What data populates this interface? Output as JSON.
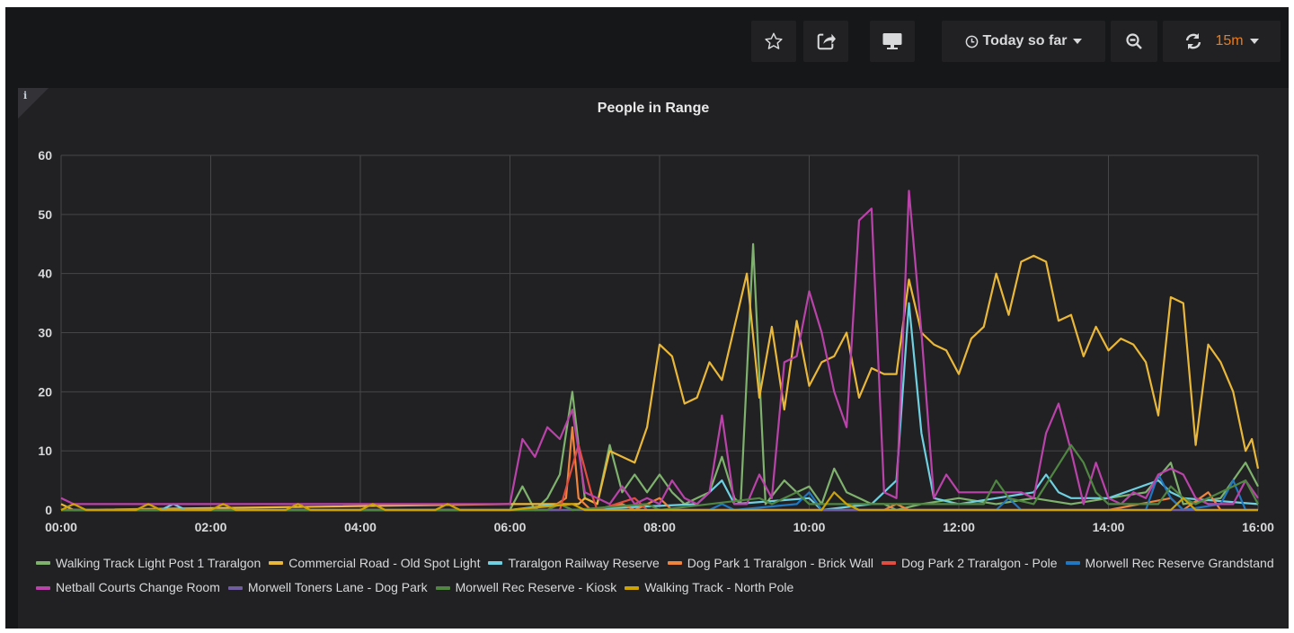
{
  "toolbar": {
    "star_icon": "star-icon",
    "share_icon": "share-icon",
    "tv_icon": "monitor-icon",
    "time_range_label": "Today so far",
    "zoom_icon": "zoom-out-icon",
    "refresh_icon": "refresh-icon",
    "refresh_interval": "15m",
    "refresh_color": "#eb7b18"
  },
  "panel": {
    "info_mark": "i"
  },
  "chart_data": {
    "type": "line",
    "title": "People in Range",
    "xlabel": "",
    "ylabel": "",
    "x_ticks": [
      "00:00",
      "02:00",
      "04:00",
      "06:00",
      "08:00",
      "10:00",
      "12:00",
      "14:00",
      "16:00"
    ],
    "xlim": [
      "00:00",
      "16:00"
    ],
    "y_ticks": [
      0,
      10,
      20,
      30,
      40,
      50,
      60
    ],
    "ylim": [
      0,
      60
    ],
    "grid": true,
    "legend_position": "bottom",
    "series": [
      {
        "name": "Walking Track Light Post 1 Traralgon",
        "color": "#7eb26d",
        "points": [
          [
            "00:00",
            0
          ],
          [
            "06:00",
            0
          ],
          [
            "06:10",
            4
          ],
          [
            "06:20",
            0
          ],
          [
            "06:30",
            2
          ],
          [
            "06:40",
            6
          ],
          [
            "06:50",
            20
          ],
          [
            "07:00",
            2
          ],
          [
            "07:10",
            1
          ],
          [
            "07:20",
            11
          ],
          [
            "07:30",
            3
          ],
          [
            "07:40",
            6
          ],
          [
            "07:50",
            3
          ],
          [
            "08:00",
            6
          ],
          [
            "08:10",
            3
          ],
          [
            "08:20",
            1
          ],
          [
            "08:30",
            2
          ],
          [
            "08:40",
            3
          ],
          [
            "08:50",
            9
          ],
          [
            "09:00",
            2
          ],
          [
            "09:05",
            1
          ],
          [
            "09:15",
            45
          ],
          [
            "09:25",
            1
          ],
          [
            "09:40",
            5
          ],
          [
            "09:50",
            3
          ],
          [
            "10:00",
            4
          ],
          [
            "10:10",
            1
          ],
          [
            "10:20",
            7
          ],
          [
            "10:30",
            3
          ],
          [
            "10:40",
            2
          ],
          [
            "10:50",
            1
          ],
          [
            "11:00",
            1
          ],
          [
            "11:10",
            0
          ],
          [
            "11:30",
            1
          ],
          [
            "12:00",
            2
          ],
          [
            "12:30",
            1
          ],
          [
            "13:00",
            2
          ],
          [
            "13:30",
            1
          ],
          [
            "14:00",
            2
          ],
          [
            "14:30",
            3
          ],
          [
            "14:50",
            8
          ],
          [
            "15:00",
            1
          ],
          [
            "15:30",
            2
          ],
          [
            "15:50",
            8
          ],
          [
            "16:00",
            4
          ]
        ]
      },
      {
        "name": "Commercial Road - Old Spot Light",
        "color": "#eab839",
        "points": [
          [
            "00:00",
            1
          ],
          [
            "00:10",
            0
          ],
          [
            "06:00",
            1
          ],
          [
            "06:40",
            1
          ],
          [
            "06:55",
            1
          ],
          [
            "07:00",
            2
          ],
          [
            "07:10",
            1
          ],
          [
            "07:20",
            10
          ],
          [
            "07:40",
            8
          ],
          [
            "07:50",
            14
          ],
          [
            "08:00",
            28
          ],
          [
            "08:10",
            26
          ],
          [
            "08:20",
            18
          ],
          [
            "08:30",
            19
          ],
          [
            "08:40",
            25
          ],
          [
            "08:50",
            22
          ],
          [
            "09:00",
            31
          ],
          [
            "09:10",
            40
          ],
          [
            "09:20",
            19
          ],
          [
            "09:30",
            31
          ],
          [
            "09:40",
            17
          ],
          [
            "09:50",
            32
          ],
          [
            "10:00",
            21
          ],
          [
            "10:10",
            25
          ],
          [
            "10:20",
            26
          ],
          [
            "10:30",
            30
          ],
          [
            "10:40",
            19
          ],
          [
            "10:50",
            24
          ],
          [
            "11:00",
            23
          ],
          [
            "11:10",
            23
          ],
          [
            "11:20",
            39
          ],
          [
            "11:30",
            30
          ],
          [
            "11:40",
            28
          ],
          [
            "11:50",
            27
          ],
          [
            "12:00",
            23
          ],
          [
            "12:10",
            29
          ],
          [
            "12:20",
            31
          ],
          [
            "12:30",
            40
          ],
          [
            "12:40",
            33
          ],
          [
            "12:50",
            42
          ],
          [
            "13:00",
            43
          ],
          [
            "13:10",
            42
          ],
          [
            "13:20",
            32
          ],
          [
            "13:30",
            33
          ],
          [
            "13:40",
            26
          ],
          [
            "13:50",
            31
          ],
          [
            "14:00",
            27
          ],
          [
            "14:10",
            29
          ],
          [
            "14:20",
            28
          ],
          [
            "14:30",
            25
          ],
          [
            "14:40",
            16
          ],
          [
            "14:50",
            36
          ],
          [
            "15:00",
            35
          ],
          [
            "15:10",
            11
          ],
          [
            "15:20",
            28
          ],
          [
            "15:30",
            25
          ],
          [
            "15:40",
            20
          ],
          [
            "15:50",
            10
          ],
          [
            "15:55",
            12
          ],
          [
            "16:00",
            7
          ]
        ]
      },
      {
        "name": "Traralgon Railway Reserve",
        "color": "#6ed0e0",
        "points": [
          [
            "00:00",
            0
          ],
          [
            "01:20",
            0
          ],
          [
            "01:30",
            1
          ],
          [
            "01:40",
            0
          ],
          [
            "06:00",
            0
          ],
          [
            "06:40",
            1
          ],
          [
            "06:50",
            0
          ],
          [
            "08:30",
            1
          ],
          [
            "08:50",
            5
          ],
          [
            "09:00",
            1
          ],
          [
            "10:00",
            2
          ],
          [
            "10:10",
            0
          ],
          [
            "10:50",
            1
          ],
          [
            "11:10",
            5
          ],
          [
            "11:20",
            35
          ],
          [
            "11:30",
            13
          ],
          [
            "11:40",
            2
          ],
          [
            "12:00",
            1
          ],
          [
            "12:30",
            2
          ],
          [
            "13:00",
            3
          ],
          [
            "13:10",
            6
          ],
          [
            "13:20",
            3
          ],
          [
            "13:30",
            2
          ],
          [
            "14:00",
            2
          ],
          [
            "14:40",
            5
          ],
          [
            "14:50",
            3
          ],
          [
            "15:00",
            2
          ],
          [
            "16:00",
            1
          ]
        ]
      },
      {
        "name": "Dog Park 1 Traralgon - Brick Wall",
        "color": "#ef843c",
        "points": [
          [
            "00:00",
            0
          ],
          [
            "06:30",
            0
          ],
          [
            "06:45",
            2
          ],
          [
            "06:50",
            14
          ],
          [
            "06:55",
            2
          ],
          [
            "07:05",
            0
          ],
          [
            "07:30",
            1
          ],
          [
            "07:40",
            0
          ],
          [
            "08:00",
            2
          ],
          [
            "08:10",
            0
          ],
          [
            "11:00",
            0
          ],
          [
            "11:10",
            1
          ],
          [
            "11:20",
            0
          ],
          [
            "14:00",
            0
          ],
          [
            "14:50",
            2
          ],
          [
            "15:00",
            0
          ],
          [
            "15:20",
            3
          ],
          [
            "15:30",
            0
          ],
          [
            "16:00",
            0
          ]
        ]
      },
      {
        "name": "Dog Park 2 Traralgon - Pole",
        "color": "#e24d42",
        "points": [
          [
            "00:00",
            0
          ],
          [
            "06:40",
            0
          ],
          [
            "06:55",
            11
          ],
          [
            "07:05",
            3
          ],
          [
            "07:10",
            0
          ],
          [
            "07:40",
            2
          ],
          [
            "07:50",
            0
          ],
          [
            "16:00",
            0
          ]
        ]
      },
      {
        "name": "Morwell Rec Reserve Grandstand",
        "color": "#1f78c1",
        "points": [
          [
            "00:00",
            0
          ],
          [
            "08:40",
            0
          ],
          [
            "08:50",
            1
          ],
          [
            "09:00",
            0
          ],
          [
            "09:50",
            1
          ],
          [
            "10:00",
            3
          ],
          [
            "10:10",
            0
          ],
          [
            "12:30",
            0
          ],
          [
            "12:40",
            2
          ],
          [
            "12:50",
            0
          ],
          [
            "14:30",
            0
          ],
          [
            "14:40",
            6
          ],
          [
            "14:50",
            2
          ],
          [
            "15:00",
            0
          ],
          [
            "15:30",
            1
          ],
          [
            "15:40",
            5
          ],
          [
            "15:50",
            0
          ],
          [
            "16:00",
            0
          ]
        ]
      },
      {
        "name": "Netball Courts Change Room",
        "color": "#ba43a9",
        "points": [
          [
            "00:00",
            2
          ],
          [
            "00:10",
            1
          ],
          [
            "06:00",
            1
          ],
          [
            "06:10",
            12
          ],
          [
            "06:20",
            9
          ],
          [
            "06:30",
            14
          ],
          [
            "06:40",
            12
          ],
          [
            "06:50",
            17
          ],
          [
            "07:00",
            3
          ],
          [
            "07:10",
            2
          ],
          [
            "07:20",
            1
          ],
          [
            "07:30",
            4
          ],
          [
            "07:40",
            1
          ],
          [
            "07:50",
            2
          ],
          [
            "08:00",
            1
          ],
          [
            "08:10",
            5
          ],
          [
            "08:20",
            2
          ],
          [
            "08:30",
            1
          ],
          [
            "08:40",
            3
          ],
          [
            "08:50",
            16
          ],
          [
            "09:00",
            1
          ],
          [
            "09:10",
            1
          ],
          [
            "09:20",
            6
          ],
          [
            "09:30",
            2
          ],
          [
            "09:40",
            25
          ],
          [
            "09:50",
            26
          ],
          [
            "10:00",
            37
          ],
          [
            "10:10",
            30
          ],
          [
            "10:20",
            20
          ],
          [
            "10:30",
            14
          ],
          [
            "10:40",
            49
          ],
          [
            "10:50",
            51
          ],
          [
            "11:00",
            3
          ],
          [
            "11:10",
            2
          ],
          [
            "11:20",
            54
          ],
          [
            "11:30",
            30
          ],
          [
            "11:40",
            2
          ],
          [
            "11:50",
            6
          ],
          [
            "12:00",
            3
          ],
          [
            "12:30",
            3
          ],
          [
            "12:50",
            3
          ],
          [
            "13:00",
            2
          ],
          [
            "13:10",
            13
          ],
          [
            "13:20",
            18
          ],
          [
            "13:30",
            10
          ],
          [
            "13:40",
            1
          ],
          [
            "13:50",
            8
          ],
          [
            "14:00",
            2
          ],
          [
            "14:10",
            1
          ],
          [
            "14:20",
            3
          ],
          [
            "14:30",
            2
          ],
          [
            "14:40",
            6
          ],
          [
            "14:50",
            7
          ],
          [
            "15:00",
            6
          ],
          [
            "15:10",
            2
          ],
          [
            "15:20",
            1
          ],
          [
            "15:30",
            1
          ],
          [
            "15:40",
            1
          ],
          [
            "15:50",
            5
          ],
          [
            "16:00",
            2
          ]
        ]
      },
      {
        "name": "Morwell Toners Lane - Dog Park",
        "color": "#705da0",
        "points": [
          [
            "00:00",
            0
          ],
          [
            "16:00",
            0
          ]
        ]
      },
      {
        "name": "Morwell Rec Reserve - Kiosk",
        "color": "#508642",
        "points": [
          [
            "00:00",
            0
          ],
          [
            "06:30",
            0
          ],
          [
            "06:40",
            1
          ],
          [
            "06:50",
            0
          ],
          [
            "07:50",
            1
          ],
          [
            "08:00",
            0
          ],
          [
            "09:20",
            2
          ],
          [
            "09:30",
            1
          ],
          [
            "09:50",
            3
          ],
          [
            "10:00",
            1
          ],
          [
            "12:20",
            1
          ],
          [
            "12:30",
            5
          ],
          [
            "12:40",
            2
          ],
          [
            "13:00",
            1
          ],
          [
            "13:30",
            11
          ],
          [
            "13:40",
            8
          ],
          [
            "13:50",
            3
          ],
          [
            "14:00",
            1
          ],
          [
            "14:40",
            1
          ],
          [
            "14:50",
            4
          ],
          [
            "15:00",
            2
          ],
          [
            "15:10",
            1
          ],
          [
            "15:50",
            5
          ],
          [
            "16:00",
            1
          ]
        ]
      },
      {
        "name": "Walking Track - North Pole",
        "color": "#cca300",
        "points": [
          [
            "00:00",
            0
          ],
          [
            "00:10",
            1
          ],
          [
            "00:20",
            0
          ],
          [
            "01:00",
            0
          ],
          [
            "01:10",
            1
          ],
          [
            "01:20",
            0
          ],
          [
            "02:00",
            0
          ],
          [
            "02:10",
            1
          ],
          [
            "02:20",
            0
          ],
          [
            "03:00",
            0
          ],
          [
            "03:10",
            1
          ],
          [
            "03:20",
            0
          ],
          [
            "04:00",
            0
          ],
          [
            "04:10",
            1
          ],
          [
            "04:20",
            0
          ],
          [
            "05:00",
            0
          ],
          [
            "05:10",
            1
          ],
          [
            "05:20",
            0
          ],
          [
            "06:00",
            0
          ],
          [
            "06:50",
            1
          ],
          [
            "07:00",
            0
          ],
          [
            "10:10",
            0
          ],
          [
            "10:20",
            3
          ],
          [
            "10:30",
            1
          ],
          [
            "10:40",
            0
          ],
          [
            "14:50",
            0
          ],
          [
            "15:00",
            2
          ],
          [
            "15:10",
            0
          ],
          [
            "16:00",
            0
          ]
        ]
      }
    ]
  }
}
